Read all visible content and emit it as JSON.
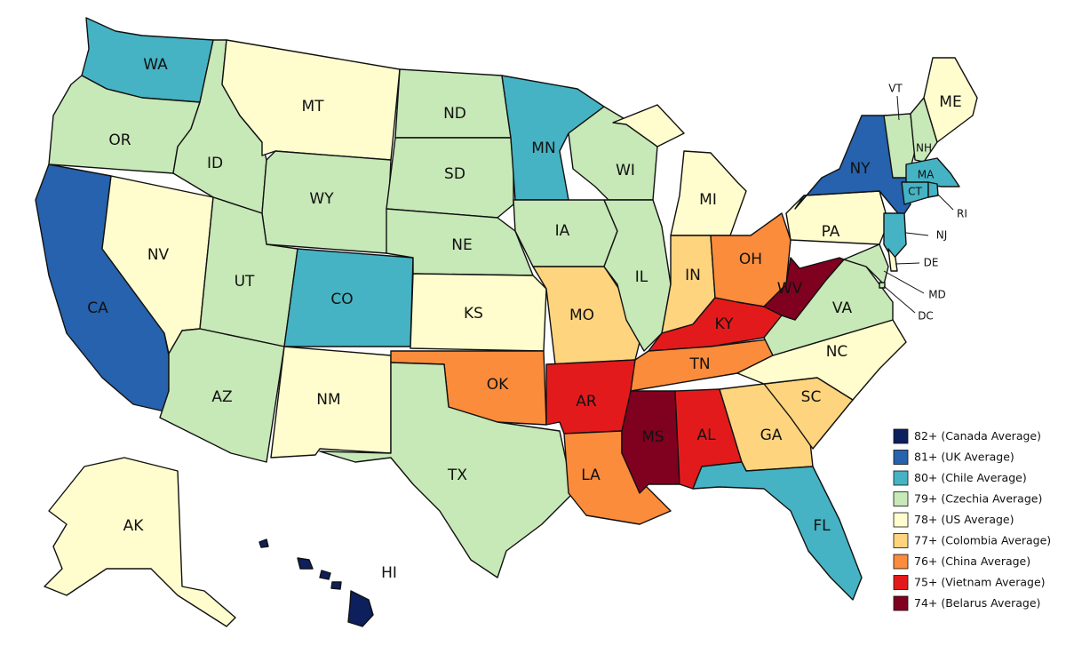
{
  "legend": [
    {
      "label": "82+ (Canada Average)",
      "color": "#0d1f5c"
    },
    {
      "label": "81+ (UK Average)",
      "color": "#2662ad"
    },
    {
      "label": "80+ (Chile Average)",
      "color": "#45b3c3"
    },
    {
      "label": "79+ (Czechia Average)",
      "color": "#c7e8b7"
    },
    {
      "label": "78+ (US Average)",
      "color": "#fffdcd"
    },
    {
      "label": "77+ (Colombia Average)",
      "color": "#fed47e"
    },
    {
      "label": "76+ (China Average)",
      "color": "#fb8c3c"
    },
    {
      "label": "75+ (Vietnam Average)",
      "color": "#e31a1c"
    },
    {
      "label": "74+ (Belarus Average)",
      "color": "#800020"
    }
  ],
  "states": [
    {
      "label": "WA",
      "color": "#45b3c3"
    },
    {
      "label": "OR",
      "color": "#c7e8b7"
    },
    {
      "label": "CA",
      "color": "#2662ad"
    },
    {
      "label": "NV",
      "color": "#fffdcd"
    },
    {
      "label": "ID",
      "color": "#c7e8b7"
    },
    {
      "label": "MT",
      "color": "#fffdcd"
    },
    {
      "label": "WY",
      "color": "#c7e8b7"
    },
    {
      "label": "UT",
      "color": "#c7e8b7"
    },
    {
      "label": "CO",
      "color": "#45b3c3"
    },
    {
      "label": "AZ",
      "color": "#c7e8b7"
    },
    {
      "label": "NM",
      "color": "#fffdcd"
    },
    {
      "label": "ND",
      "color": "#c7e8b7"
    },
    {
      "label": "SD",
      "color": "#c7e8b7"
    },
    {
      "label": "NE",
      "color": "#c7e8b7"
    },
    {
      "label": "KS",
      "color": "#fffdcd"
    },
    {
      "label": "OK",
      "color": "#fb8c3c"
    },
    {
      "label": "TX",
      "color": "#c7e8b7"
    },
    {
      "label": "MN",
      "color": "#45b3c3"
    },
    {
      "label": "IA",
      "color": "#c7e8b7"
    },
    {
      "label": "MO",
      "color": "#fed47e"
    },
    {
      "label": "AR",
      "color": "#e31a1c"
    },
    {
      "label": "LA",
      "color": "#fb8c3c"
    },
    {
      "label": "WI",
      "color": "#c7e8b7"
    },
    {
      "label": "IL",
      "color": "#c7e8b7"
    },
    {
      "label": "MI",
      "color": "#fffdcd"
    },
    {
      "label": "IN",
      "color": "#fed47e"
    },
    {
      "label": "OH",
      "color": "#fb8c3c"
    },
    {
      "label": "KY",
      "color": "#e31a1c"
    },
    {
      "label": "TN",
      "color": "#fb8c3c"
    },
    {
      "label": "MS",
      "color": "#800020"
    },
    {
      "label": "AL",
      "color": "#e31a1c"
    },
    {
      "label": "GA",
      "color": "#fed47e"
    },
    {
      "label": "FL",
      "color": "#45b3c3"
    },
    {
      "label": "SC",
      "color": "#fed47e"
    },
    {
      "label": "NC",
      "color": "#fffdcd"
    },
    {
      "label": "VA",
      "color": "#c7e8b7"
    },
    {
      "label": "WV",
      "color": "#800020"
    },
    {
      "label": "PA",
      "color": "#fffdcd"
    },
    {
      "label": "NY",
      "color": "#2662ad"
    },
    {
      "label": "NJ",
      "color": "#45b3c3"
    },
    {
      "label": "DE",
      "color": "#fffdcd"
    },
    {
      "label": "MD",
      "color": "#c7e8b7"
    },
    {
      "label": "DC",
      "color": "#c7e8b7"
    },
    {
      "label": "VT",
      "color": "#c7e8b7"
    },
    {
      "label": "NH",
      "color": "#c7e8b7"
    },
    {
      "label": "ME",
      "color": "#fffdcd"
    },
    {
      "label": "MA",
      "color": "#45b3c3"
    },
    {
      "label": "CT",
      "color": "#45b3c3"
    },
    {
      "label": "RI",
      "color": "#45b3c3"
    },
    {
      "label": "AK",
      "color": "#fffdcd"
    },
    {
      "label": "HI",
      "color": "#0d1f5c"
    }
  ]
}
